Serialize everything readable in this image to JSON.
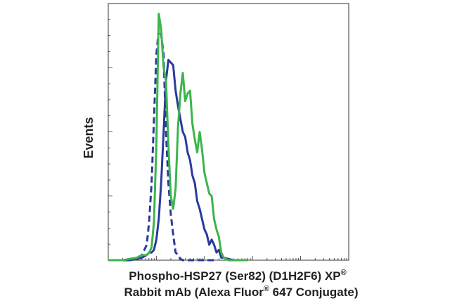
{
  "chart_data": {
    "type": "line",
    "chart_kind": "flow cytometry histogram overlay",
    "xlabel_line1": "Phospho-HSP27 (Ser82) (D1H2F6) XP",
    "xlabel_line2_a": "Rabbit mAb (Alexa Fluor",
    "xlabel_line2_b": " 647 Conjugate)",
    "registered_mark": "®",
    "ylabel": "Events",
    "xlim": [
      0,
      100
    ],
    "ylim": [
      0,
      100
    ],
    "x_axis_log_scale": true,
    "tick_labels_shown": false,
    "grid": false,
    "series": [
      {
        "color": "#2a3a9c",
        "dash": "solid",
        "x": [
          0,
          3,
          6,
          9,
          12,
          14,
          16,
          17,
          18,
          19,
          20,
          21,
          22,
          23,
          24,
          25,
          26,
          27,
          28,
          29,
          30,
          31,
          32,
          33,
          34,
          35,
          36,
          37,
          38,
          39,
          40,
          41,
          42,
          43,
          44,
          45,
          46,
          47,
          48,
          50,
          52,
          54,
          56,
          58
        ],
        "y": [
          0,
          0,
          0,
          0,
          0.5,
          1,
          2,
          3,
          3,
          4,
          8,
          16,
          30,
          50,
          70,
          78,
          77,
          76,
          66,
          60,
          55,
          50,
          48,
          42,
          39,
          33,
          30,
          23,
          20,
          16,
          12,
          10,
          6,
          8,
          6,
          3,
          4,
          1,
          1,
          0.5,
          0,
          0,
          0,
          0
        ]
      },
      {
        "color": "#2a3a9c",
        "dash": "dashed",
        "x": [
          0,
          3,
          6,
          9,
          12,
          14,
          16,
          17,
          18,
          19,
          20,
          21,
          22,
          23,
          24,
          25,
          26,
          27,
          28,
          29,
          30,
          31,
          32,
          35,
          40,
          45
        ],
        "y": [
          0,
          0,
          0,
          0.5,
          1,
          2,
          6,
          15,
          30,
          55,
          80,
          90,
          88,
          80,
          50,
          30,
          18,
          10,
          3,
          2,
          0.5,
          0,
          0,
          0,
          0,
          0
        ]
      },
      {
        "color": "#3cb54a",
        "dash": "solid",
        "x": [
          0,
          3,
          6,
          9,
          12,
          14,
          16,
          17,
          18,
          19,
          20,
          21,
          22,
          23,
          24,
          25,
          26,
          27,
          28,
          29,
          30,
          31,
          32,
          33,
          34,
          35,
          36,
          37,
          38,
          39,
          40,
          41,
          42,
          43,
          44,
          45,
          46,
          47,
          48,
          49,
          50,
          52,
          54,
          56,
          58
        ],
        "y": [
          0,
          0,
          0,
          0.5,
          1,
          2,
          2,
          3,
          5,
          15,
          45,
          96,
          90,
          75,
          70,
          45,
          25,
          20,
          28,
          52,
          65,
          73,
          62,
          65,
          66,
          53,
          47,
          42,
          50,
          43,
          34,
          30,
          26,
          25,
          16,
          12,
          9,
          3,
          1,
          0.5,
          0,
          0,
          0,
          0,
          0
        ]
      }
    ]
  }
}
